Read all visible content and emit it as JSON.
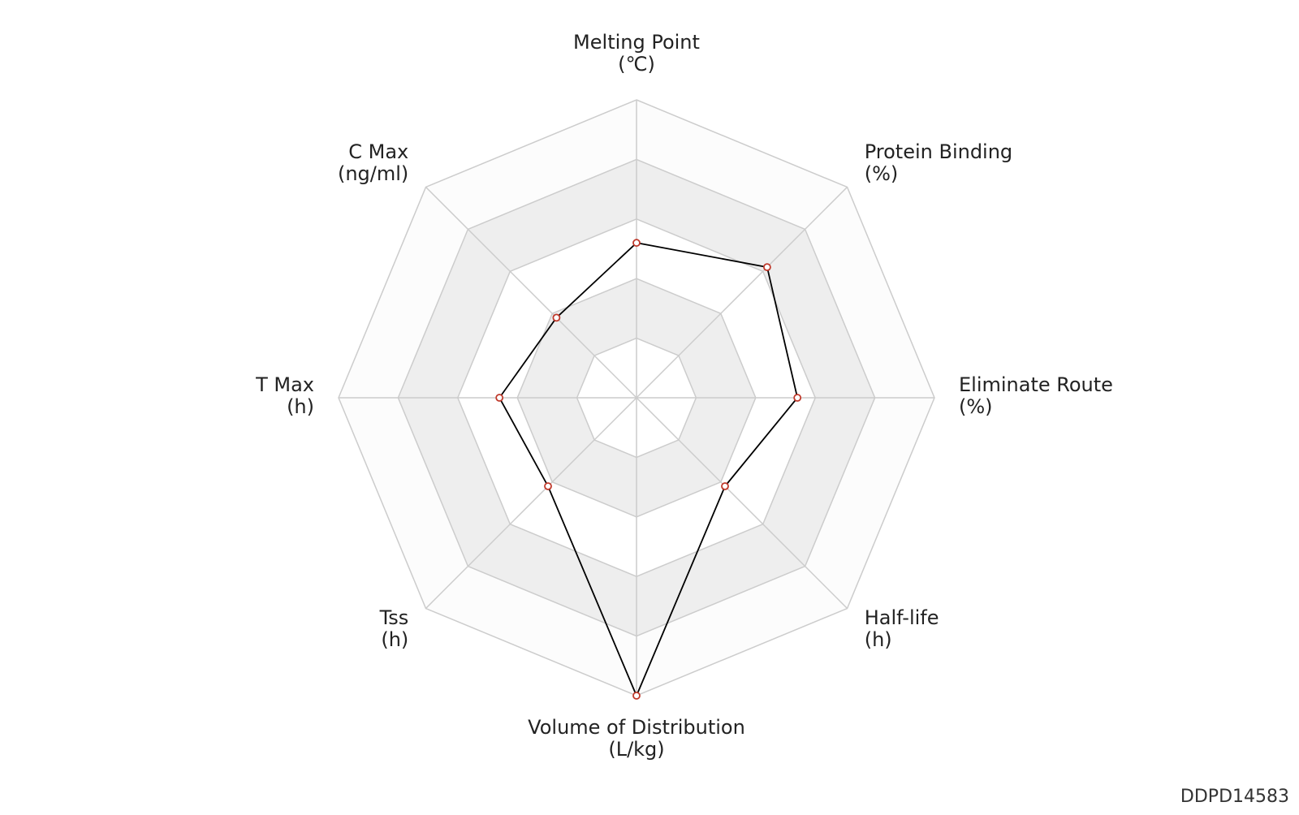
{
  "chart_data": {
    "type": "radar",
    "categories": [
      "Melting Point",
      "Protein Binding",
      "Eliminate Route",
      "Half-life",
      "Volume of Distribution",
      "Tss",
      "T Max",
      "C Max"
    ],
    "units": [
      "(℃)",
      "(%)",
      "(%)",
      "(h)",
      "(L/kg)",
      "(h)",
      "(h)",
      "(ng/ml)"
    ],
    "values": [
      2.6,
      3.1,
      2.7,
      2.1,
      5,
      2.1,
      2.3,
      1.9
    ],
    "color": "#000000",
    "marker_color": "#c0392b",
    "rlim": [
      0,
      5
    ],
    "rticks": [
      1,
      2,
      3,
      4,
      5
    ],
    "grid": true
  },
  "watermark": "DDPD14583"
}
